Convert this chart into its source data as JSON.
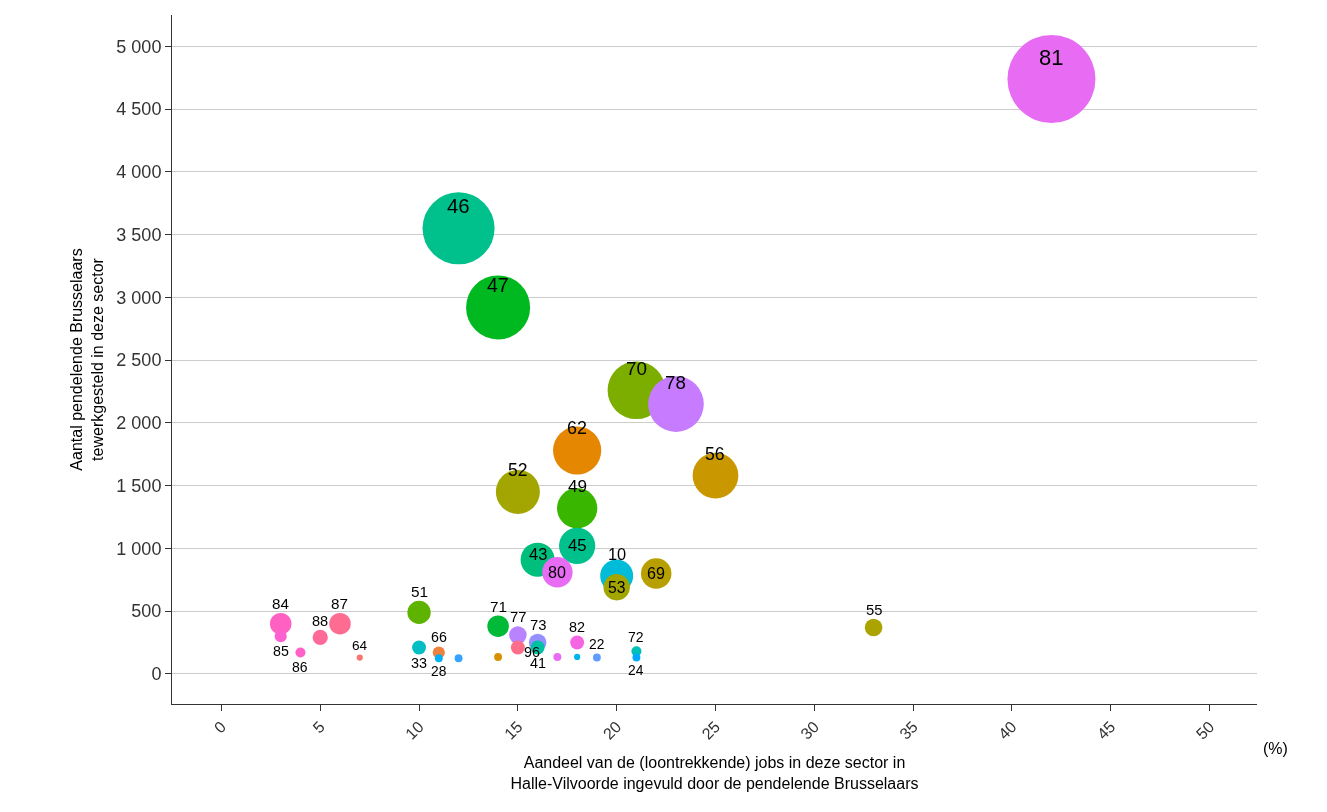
{
  "chart_data": {
    "type": "bubble",
    "xlabel": "Aandeel van de (loontrekkende) jobs in deze sector in\nHalle-Vilvoorde ingevuld door de pendelende Brusselaars",
    "ylabel": "Aantal pendelende Brusselaars\ntewerkgesteld in deze sector",
    "x": [
      42,
      12,
      14,
      21,
      23,
      18,
      25,
      15,
      18,
      18,
      16,
      17,
      20,
      20,
      22,
      33,
      10,
      3,
      3,
      4,
      5,
      6,
      7,
      10,
      11,
      11,
      12,
      14,
      15,
      15,
      16,
      16,
      14,
      17,
      18,
      18,
      19,
      21,
      21
    ],
    "values": [
      4740,
      3550,
      2920,
      2260,
      2150,
      1780,
      1580,
      1450,
      1320,
      1020,
      910,
      810,
      780,
      690,
      800,
      370,
      490,
      400,
      300,
      170,
      290,
      400,
      130,
      210,
      170,
      125,
      125,
      380,
      310,
      210,
      250,
      210,
      135,
      135,
      250,
      135,
      130,
      180,
      130
    ],
    "sizes": [
      1,
      0.67,
      0.53,
      0.43,
      0.4,
      0.3,
      0.27,
      0.25,
      0.21,
      0.17,
      0.15,
      0.12,
      0.14,
      0.09,
      0.12,
      0.04,
      0.07,
      0.06,
      0.019,
      0.013,
      0.03,
      0.06,
      0.005,
      0.025,
      0.019,
      0.008,
      0.008,
      0.06,
      0.04,
      0.025,
      0.04,
      0.025,
      0.008,
      0.008,
      0.025,
      0.005,
      0.008,
      0.013,
      0.008
    ],
    "colors": [
      "#e76bf3",
      "#00c08b",
      "#00b81f",
      "#7cae00",
      "#c77cff",
      "#e58700",
      "#c99800",
      "#a3a500",
      "#39b600",
      "#00c08b",
      "#00bf7d",
      "#e76bf3",
      "#00bcd8",
      "#a3a500",
      "#b79f00",
      "#aba300",
      "#5eb300",
      "#ff61c3",
      "#fd61d1",
      "#ff61c9",
      "#ff6a98",
      "#ff6c91",
      "#f8766d",
      "#00bfc4",
      "#ed813e",
      "#00b0f6",
      "#35a2ff",
      "#00ba38",
      "#b983ff",
      "#fe6e8a",
      "#9590ff",
      "#00c1a3",
      "#d89000",
      "#e76bf3",
      "#f564e3",
      "#00b4ef",
      "#619cff",
      "#00c0b8",
      "#00a9ff"
    ],
    "xlim": [
      -2.5,
      52.4
    ],
    "xticks": [
      0,
      5,
      10,
      15,
      20,
      25,
      30,
      35,
      40,
      45,
      50
    ],
    "ylim": [
      -240,
      5250
    ],
    "yticks": [
      0,
      {
        "value": 500,
        "label": "500"
      },
      {
        "value": 1000,
        "label": "1 000"
      },
      {
        "value": 1500,
        "label": "1 500"
      },
      {
        "value": 2000,
        "label": "2 000"
      },
      {
        "value": 2500,
        "label": "2 500"
      },
      {
        "value": 3000,
        "label": "3 000"
      },
      {
        "value": 3500,
        "label": "3 500"
      },
      {
        "value": 4000,
        "label": "4 000"
      },
      {
        "value": 4500,
        "label": "4 500"
      },
      {
        "value": 5000,
        "label": "5 000"
      }
    ],
    "grid": "y",
    "annotations": [
      {
        "text": "81",
        "x": 42,
        "y": 4740
      },
      {
        "text": "46",
        "x": 12,
        "y": 3550
      },
      {
        "text": "47",
        "x": 14,
        "y": 2920
      },
      {
        "text": "70",
        "x": 21,
        "y": 2260
      },
      {
        "text": "78",
        "x": 23,
        "y": 2150
      },
      {
        "text": "62",
        "x": 18,
        "y": 1780
      },
      {
        "text": "56",
        "x": 25,
        "y": 1580
      },
      {
        "text": "52",
        "x": 15,
        "y": 1450
      },
      {
        "text": "49",
        "x": 18,
        "y": 1320
      },
      {
        "text": "45",
        "x": 18,
        "y": 1020
      },
      {
        "text": "43",
        "x": 16,
        "y": 910
      },
      {
        "text": "80",
        "x": 17,
        "y": 810
      },
      {
        "text": "10",
        "x": 20,
        "y": 780
      },
      {
        "text": "53",
        "x": 20,
        "y": 690
      },
      {
        "text": "69",
        "x": 22,
        "y": 800
      },
      {
        "text": "55",
        "x": 33,
        "y": 370
      },
      {
        "text": "51",
        "x": 10,
        "y": 490
      },
      {
        "text": "84",
        "x": 3,
        "y": 400
      },
      {
        "text": "85",
        "x": 3,
        "y": 300
      },
      {
        "text": "86",
        "x": 4,
        "y": 170
      },
      {
        "text": "88",
        "x": 5,
        "y": 290
      },
      {
        "text": "87",
        "x": 6,
        "y": 400
      },
      {
        "text": "64",
        "x": 7,
        "y": 130
      },
      {
        "text": "33",
        "x": 10,
        "y": 210
      },
      {
        "text": "66",
        "x": 11,
        "y": 170
      },
      {
        "text": "28",
        "x": 11,
        "y": 125
      },
      {
        "text": "71",
        "x": 14,
        "y": 380
      },
      {
        "text": "77",
        "x": 15,
        "y": 310
      },
      {
        "text": "96",
        "x": 15,
        "y": 210
      },
      {
        "text": "73",
        "x": 16,
        "y": 250
      },
      {
        "text": "41",
        "x": 16,
        "y": 210
      },
      {
        "text": "82",
        "x": 18,
        "y": 250
      },
      {
        "text": "22",
        "x": 19,
        "y": 130
      },
      {
        "text": "72",
        "x": 21,
        "y": 180
      },
      {
        "text": "24",
        "x": 21,
        "y": 130
      },
      "(%)"
    ]
  }
}
